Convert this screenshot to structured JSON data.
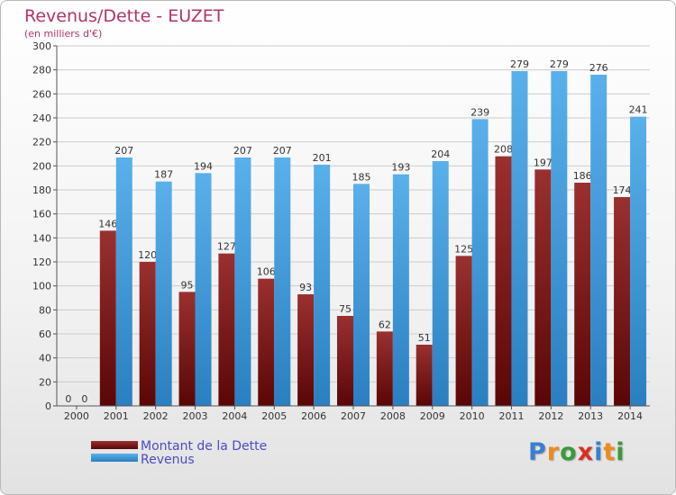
{
  "chart_data": {
    "type": "bar",
    "title": "Revenus/Dette - EUZET",
    "subtitle": "(en milliers d'€)",
    "categories": [
      "2000",
      "2001",
      "2002",
      "2003",
      "2004",
      "2005",
      "2006",
      "2007",
      "2008",
      "2009",
      "2010",
      "2011",
      "2012",
      "2013",
      "2014"
    ],
    "series": [
      {
        "name": "Montant de la Dette",
        "color": "#7a1c1c",
        "values": [
          0,
          146,
          120,
          95,
          127,
          106,
          93,
          75,
          62,
          51,
          125,
          208,
          197,
          186,
          174
        ]
      },
      {
        "name": "Revenus",
        "color": "#3a93d8",
        "values": [
          0,
          207,
          187,
          194,
          207,
          207,
          201,
          185,
          193,
          204,
          239,
          279,
          279,
          276,
          241
        ]
      }
    ],
    "ylim": [
      0,
      300
    ],
    "yticks": [
      0,
      20,
      40,
      60,
      80,
      100,
      120,
      140,
      160,
      180,
      200,
      220,
      240,
      260,
      280,
      300
    ],
    "grid": true,
    "legend_position": "bottom-left"
  },
  "logo": {
    "letters": [
      {
        "ch": "P",
        "color": "#3a7fd0"
      },
      {
        "ch": "r",
        "color": "#f08a1c"
      },
      {
        "ch": "o",
        "color": "#3a9a3a"
      },
      {
        "ch": "x",
        "color": "#d83020"
      },
      {
        "ch": "i",
        "color": "#3a7fd0"
      },
      {
        "ch": "t",
        "color": "#f08a1c"
      },
      {
        "ch": "i",
        "color": "#3a9a3a"
      }
    ]
  }
}
